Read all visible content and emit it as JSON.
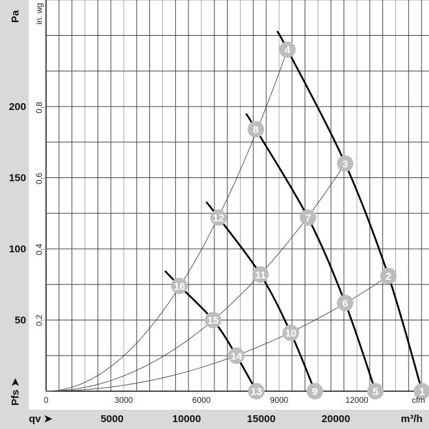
{
  "chart_data": {
    "type": "line",
    "title": "",
    "ylabel": "Pa",
    "ylabel_secondary": "in. wg",
    "xlabel": "cfm",
    "xlabel_secondary": "m³/h",
    "bottom_left_label": "qv ➤",
    "left_bottom_label": "Pfs ➤",
    "xlim_cfm": [
      0,
      14700
    ],
    "ylim_pa": [
      0,
      275
    ],
    "grid": true,
    "pa_ticks": [
      {
        "v": 50,
        "label": "50"
      },
      {
        "v": 100,
        "label": "100"
      },
      {
        "v": 150,
        "label": "150"
      },
      {
        "v": 200,
        "label": "200"
      }
    ],
    "inwg_ticks": [
      {
        "v": 0.2,
        "label": "0.2"
      },
      {
        "v": 0.4,
        "label": "0.4"
      },
      {
        "v": 0.6,
        "label": "0.6"
      },
      {
        "v": 0.8,
        "label": "0.8"
      }
    ],
    "cfm_ticks": [
      {
        "v": 0,
        "label": "0"
      },
      {
        "v": 3000,
        "label": "3000"
      },
      {
        "v": 6000,
        "label": "6000"
      },
      {
        "v": 9000,
        "label": "9000"
      },
      {
        "v": 12000,
        "label": "12000"
      }
    ],
    "m3h_ticks": [
      {
        "v": 5000,
        "label": "5000"
      },
      {
        "v": 10000,
        "label": "10000"
      },
      {
        "v": 15000,
        "label": "15000"
      },
      {
        "v": 20000,
        "label": "20000"
      }
    ],
    "fan_curves": [
      {
        "start": [
          8920,
          253
        ],
        "points": [
          "4",
          "3",
          "2",
          "1"
        ]
      },
      {
        "start": [
          7725,
          195
        ],
        "points": [
          "8",
          "7",
          "6",
          "5"
        ]
      },
      {
        "start": [
          6186,
          133
        ],
        "points": [
          "12",
          "11",
          "10",
          "9"
        ]
      },
      {
        "start": [
          4593,
          84.5
        ],
        "points": [
          "16",
          "15",
          "14",
          "13"
        ]
      }
    ],
    "system_curves": [
      {
        "through": "4"
      },
      {
        "through": "3"
      },
      {
        "through": "2"
      }
    ],
    "operating_points": [
      {
        "id": "1",
        "cfm": 14520,
        "pa": 0
      },
      {
        "id": "2",
        "cfm": 13220,
        "pa": 81
      },
      {
        "id": "3",
        "cfm": 11550,
        "pa": 160
      },
      {
        "id": "4",
        "cfm": 9320,
        "pa": 240
      },
      {
        "id": "5",
        "cfm": 12720,
        "pa": 0
      },
      {
        "id": "6",
        "cfm": 11550,
        "pa": 62
      },
      {
        "id": "7",
        "cfm": 10115,
        "pa": 122
      },
      {
        "id": "8",
        "cfm": 8100,
        "pa": 184
      },
      {
        "id": "9",
        "cfm": 10380,
        "pa": 0
      },
      {
        "id": "10",
        "cfm": 9450,
        "pa": 41
      },
      {
        "id": "11",
        "cfm": 8280,
        "pa": 82
      },
      {
        "id": "12",
        "cfm": 6660,
        "pa": 122
      },
      {
        "id": "13",
        "cfm": 8120,
        "pa": 0
      },
      {
        "id": "14",
        "cfm": 7350,
        "pa": 25
      },
      {
        "id": "15",
        "cfm": 6450,
        "pa": 50
      },
      {
        "id": "16",
        "cfm": 5150,
        "pa": 74
      }
    ],
    "colors": {
      "marker": "#bdbdbd",
      "fan_curve": "#000000",
      "system_curve": "#444444",
      "grid": "#333333",
      "panel": "#d9d9d9"
    }
  }
}
